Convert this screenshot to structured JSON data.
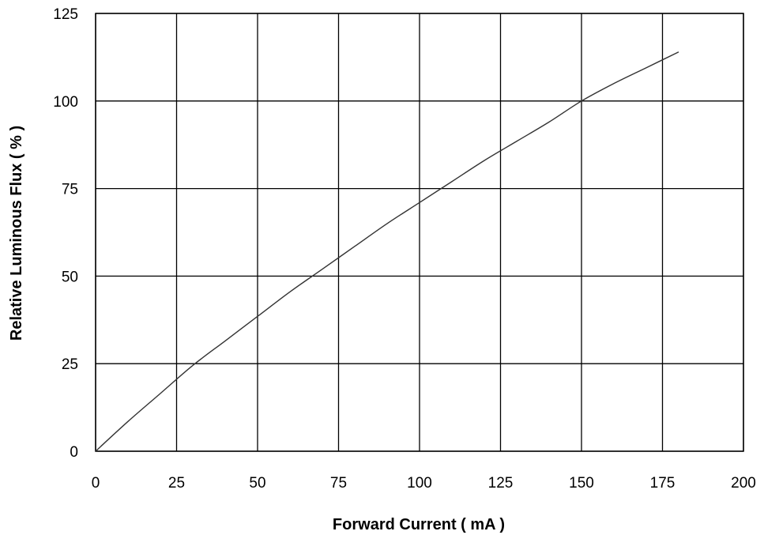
{
  "chart_data": {
    "type": "line",
    "title": "",
    "xlabel": "Forward Current ( mA )",
    "ylabel": "Relative Luminous Flux ( % )",
    "xlim": [
      0,
      200
    ],
    "ylim": [
      0,
      125
    ],
    "x_ticks": [
      "0",
      "25",
      "50",
      "75",
      "100",
      "125",
      "150",
      "175",
      "200"
    ],
    "y_ticks": [
      "0",
      "25",
      "50",
      "75",
      "100",
      "125"
    ],
    "grid": true,
    "series": [
      {
        "color": "#333333",
        "x": [
          0,
          10,
          20,
          30,
          40,
          50,
          60,
          70,
          80,
          90,
          100,
          110,
          120,
          130,
          140,
          150,
          160,
          170,
          180
        ],
        "y": [
          0,
          8.5,
          16.5,
          24.5,
          31.5,
          38.5,
          45.5,
          52,
          58.5,
          65,
          71,
          77,
          83,
          88.5,
          94,
          100,
          105,
          109.5,
          114
        ]
      }
    ]
  }
}
